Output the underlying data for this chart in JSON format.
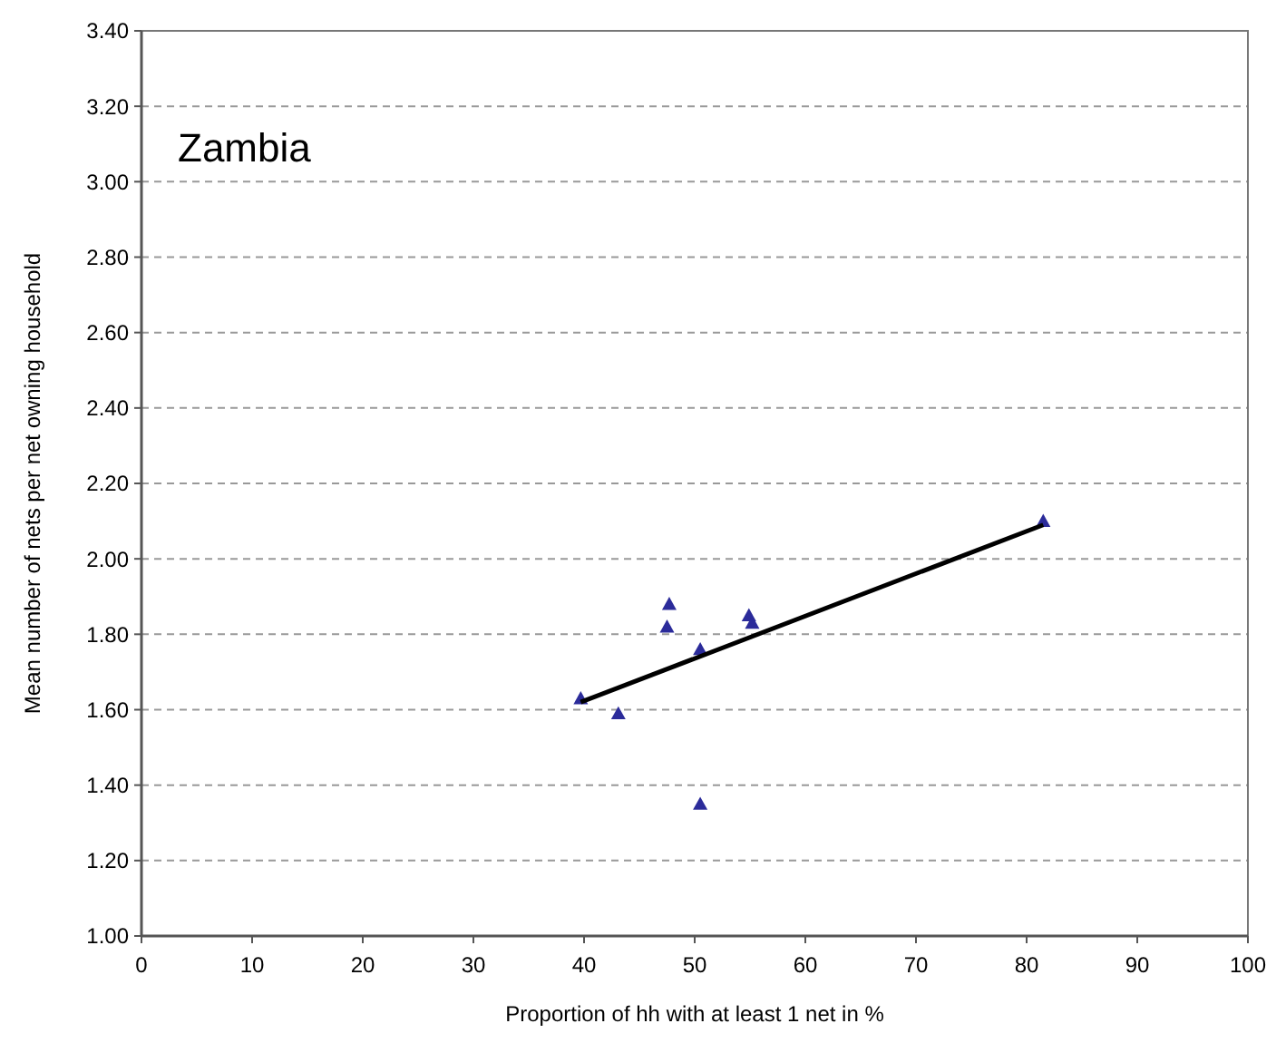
{
  "chart_data": {
    "type": "scatter",
    "xlabel": "Proportion of hh with at least 1 net in %",
    "ylabel": "Mean number of nets per net owning household",
    "annotations": [
      "Zambia"
    ],
    "xlim": [
      0,
      100
    ],
    "xticks": [
      0,
      10,
      20,
      30,
      40,
      50,
      60,
      70,
      80,
      90,
      100
    ],
    "ylim": [
      1,
      3.4
    ],
    "yticks": [
      {
        "value": 1,
        "label": "1.00"
      },
      {
        "value": 1.2,
        "label": "1.20"
      },
      {
        "value": 1.4,
        "label": "1.40"
      },
      {
        "value": 1.6,
        "label": "1.60"
      },
      {
        "value": 1.8,
        "label": "1.80"
      },
      {
        "value": 2,
        "label": "2.00"
      },
      {
        "value": 2.2,
        "label": "2.20"
      },
      {
        "value": 2.4,
        "label": "2.40"
      },
      {
        "value": 2.6,
        "label": "2.60"
      },
      {
        "value": 2.8,
        "label": "2.80"
      },
      {
        "value": 3,
        "label": "3.00"
      },
      {
        "value": 3.2,
        "label": "3.20"
      },
      {
        "value": 3.4,
        "label": "3.40"
      }
    ],
    "grid": "y",
    "marker": "triangle",
    "series": [
      {
        "color": "#2b2b9a",
        "x": [
          39.7,
          43.1,
          47.7,
          47.5,
          50.5,
          50.5,
          54.9,
          55.2,
          81.5
        ],
        "values": [
          1.63,
          1.59,
          1.88,
          1.82,
          1.76,
          1.35,
          1.85,
          1.83,
          2.1
        ]
      },
      {
        "type": "line",
        "color": "#000000",
        "marker": "none",
        "x": [
          39.7,
          81.5
        ],
        "values": [
          1.62,
          2.09
        ]
      }
    ]
  }
}
